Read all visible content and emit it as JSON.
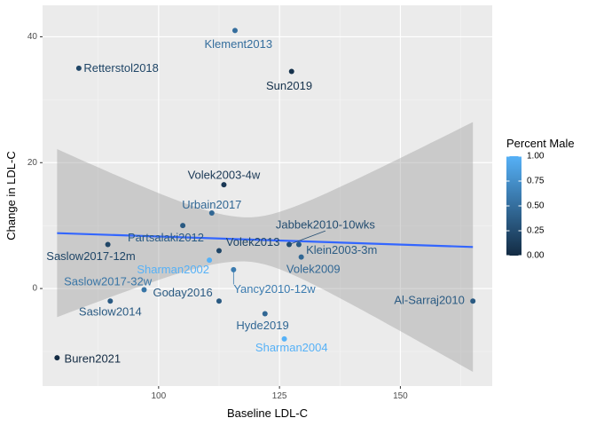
{
  "chart_data": {
    "type": "scatter",
    "title": "",
    "xlabel": "Baseline LDL-C",
    "ylabel": "Change in LDL-C",
    "xlim": [
      76,
      169
    ],
    "ylim": [
      -15.5,
      45
    ],
    "x_ticks": [
      100,
      125,
      150
    ],
    "x_tick_labels": [
      "100",
      "125",
      "150"
    ],
    "y_ticks": [
      0,
      20,
      40
    ],
    "y_tick_labels": [
      "0",
      "20",
      "40"
    ],
    "grid": true,
    "legend": {
      "title": "Percent Male",
      "position": "right",
      "type": "colorbar",
      "range": [
        0,
        1
      ],
      "breaks": [
        1.0,
        0.75,
        0.5,
        0.25,
        0.0
      ],
      "break_labels": [
        "1.00",
        "0.75",
        "0.50",
        "0.25",
        "0.00"
      ],
      "color_low": "#132b43",
      "color_high": "#56b1f7"
    },
    "points": [
      {
        "label": "Klement2013",
        "x": 115.8,
        "y": 41,
        "male": 0.5,
        "lx": 116.5,
        "ly": 38.7,
        "anchor": "middle"
      },
      {
        "label": "Retterstol2018",
        "x": 83.5,
        "y": 35,
        "male": 0.2,
        "lx": 84.5,
        "ly": 34.9,
        "anchor": "start"
      },
      {
        "label": "Sun2019",
        "x": 127.5,
        "y": 34.5,
        "male": 0.05,
        "lx": 127.0,
        "ly": 32.1,
        "anchor": "middle"
      },
      {
        "label": "Volek2003-4w",
        "x": 113.5,
        "y": 16.5,
        "male": 0.1,
        "lx": 113.5,
        "ly": 17.9,
        "anchor": "middle"
      },
      {
        "label": "Urbain2017",
        "x": 111.0,
        "y": 12.0,
        "male": 0.45,
        "lx": 111.0,
        "ly": 13.2,
        "anchor": "middle"
      },
      {
        "label": "Partsalaki2012",
        "x": 105.0,
        "y": 10.0,
        "male": 0.35,
        "lx": 101.5,
        "ly": 8.0,
        "anchor": "middle"
      },
      {
        "label": "Jabbek2010-10wks",
        "x": 127.0,
        "y": 7.0,
        "male": 0.25,
        "lx": 134.5,
        "ly": 10.0,
        "anchor": "middle",
        "segment": true
      },
      {
        "label": "Volek2013",
        "x": 112.5,
        "y": 6.0,
        "male": 0.2,
        "lx": 119.5,
        "ly": 7.3,
        "anchor": "middle"
      },
      {
        "label": "Klein2003-3m",
        "x": 129.0,
        "y": 7.0,
        "male": 0.35,
        "lx": 130.5,
        "ly": 6.0,
        "anchor": "start"
      },
      {
        "label": "Saslow2017-12m",
        "x": 89.5,
        "y": 7.0,
        "male": 0.2,
        "lx": 86.0,
        "ly": 5.0,
        "anchor": "middle"
      },
      {
        "label": "Volek2009",
        "x": 129.5,
        "y": 5.0,
        "male": 0.45,
        "lx": 132.0,
        "ly": 3.0,
        "anchor": "middle"
      },
      {
        "label": "Sharman2002",
        "x": 110.5,
        "y": 4.5,
        "male": 1.0,
        "lx": 103.0,
        "ly": 2.9,
        "anchor": "middle"
      },
      {
        "label": "Yancy2010-12w",
        "x": 115.5,
        "y": 3.0,
        "male": 0.6,
        "lx": 115.5,
        "ly": -0.2,
        "anchor": "start",
        "segment": true
      },
      {
        "label": "Saslow2017-32w",
        "x": 97.0,
        "y": -0.2,
        "male": 0.55,
        "lx": 89.5,
        "ly": 1.0,
        "anchor": "middle"
      },
      {
        "label": "Goday2016",
        "x": 112.5,
        "y": -2.0,
        "male": 0.35,
        "lx": 105.0,
        "ly": -0.8,
        "anchor": "middle"
      },
      {
        "label": "Saslow2014",
        "x": 90.0,
        "y": -2.0,
        "male": 0.35,
        "lx": 90.0,
        "ly": -3.8,
        "anchor": "middle"
      },
      {
        "label": "Al-Sarraj2010",
        "x": 165.0,
        "y": -2.0,
        "male": 0.35,
        "lx": 156.0,
        "ly": -2.0,
        "anchor": "middle"
      },
      {
        "label": "Hyde2019",
        "x": 122.0,
        "y": -4.0,
        "male": 0.45,
        "lx": 121.5,
        "ly": -6.0,
        "anchor": "middle"
      },
      {
        "label": "Sharman2004",
        "x": 126.0,
        "y": -8.0,
        "male": 1.0,
        "lx": 127.5,
        "ly": -9.5,
        "anchor": "middle"
      },
      {
        "label": "Buren2021",
        "x": 79.0,
        "y": -11.0,
        "male": 0.0,
        "lx": 80.5,
        "ly": -11.3,
        "anchor": "start"
      }
    ],
    "fit_line": {
      "x": [
        79,
        165
      ],
      "y": [
        8.8,
        6.6
      ],
      "color": "#3366ff"
    },
    "confidence_band": {
      "x": [
        79,
        165
      ],
      "upper": [
        22.2,
        26.5
      ],
      "lower": [
        -4.5,
        -13.2
      ],
      "center_x": 118,
      "center_upper": 11.3,
      "center_lower": 4.3
    }
  }
}
